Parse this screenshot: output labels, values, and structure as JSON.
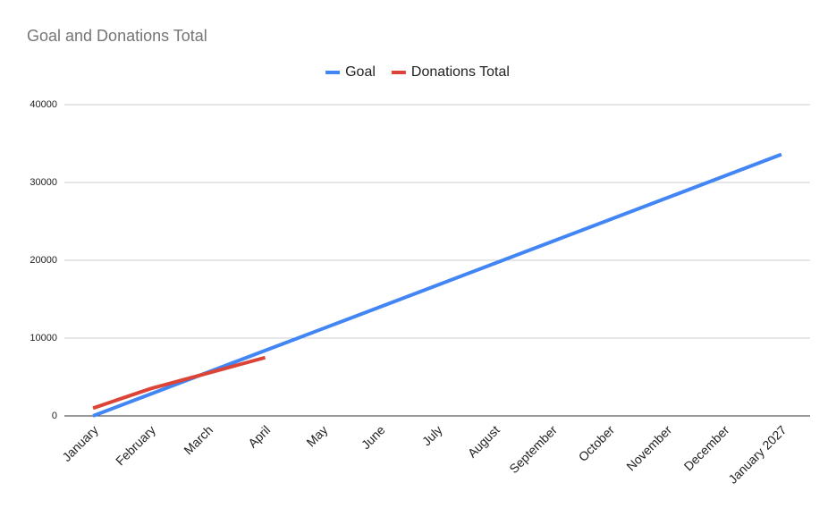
{
  "chart_data": {
    "type": "line",
    "title": "Goal and Donations Total",
    "categories": [
      "January",
      "February",
      "March",
      "April",
      "May",
      "June",
      "July",
      "August",
      "September",
      "October",
      "November",
      "December",
      "January 2027"
    ],
    "series": [
      {
        "name": "Goal",
        "color": "#4285f4",
        "values": [
          0,
          2800,
          5600,
          8400,
          11200,
          14000,
          16800,
          19600,
          22400,
          25200,
          28000,
          30800,
          33600
        ]
      },
      {
        "name": "Donations Total",
        "color": "#db4437",
        "values": [
          1000,
          3500,
          5500,
          7500,
          null,
          null,
          null,
          null,
          null,
          null,
          null,
          null,
          null
        ]
      }
    ],
    "ylim": [
      0,
      40000
    ],
    "yticks": [
      0,
      10000,
      20000,
      30000,
      40000
    ],
    "grid": true,
    "legend": "top"
  }
}
